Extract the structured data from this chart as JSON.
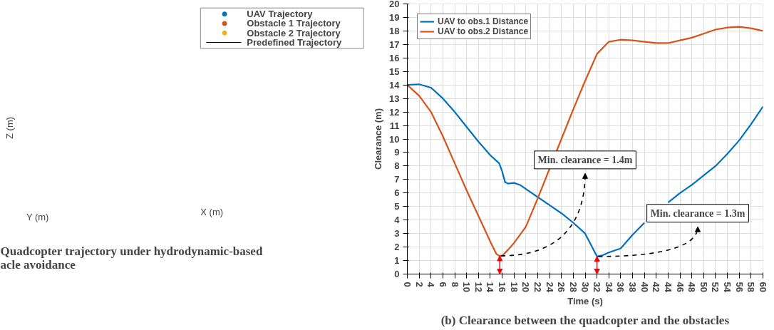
{
  "chart_data": [
    {
      "type": "other",
      "title": "Quadcopter trajectory under hydrodynamic-based\nacle avoidance",
      "xlabel": "X (m)",
      "ylabel": "Y (m)",
      "annotations": [
        "Z (m)"
      ],
      "legend": "top right",
      "series": [
        {
          "name": "UAV Trajectory",
          "color": "#0072bd",
          "marker": "circle"
        },
        {
          "name": "Obstacle 1 Trajectory",
          "color": "#d95319",
          "marker": "circle"
        },
        {
          "name": "Obstacle 2 Trajectory",
          "color": "#edb120",
          "marker": "circle"
        },
        {
          "name": "Predefined Trajectory",
          "color": "#000000",
          "marker": "none"
        }
      ]
    },
    {
      "type": "line",
      "title": "(b) Clearance between the quadcopter and the obstacles",
      "xlabel": "Time (s)",
      "ylabel": "Clearance (m)",
      "xlim": [
        0,
        60
      ],
      "xticks": [
        0,
        2,
        4,
        6,
        8,
        10,
        12,
        14,
        16,
        18,
        20,
        22,
        24,
        26,
        28,
        30,
        32,
        34,
        36,
        38,
        40,
        42,
        44,
        46,
        48,
        50,
        52,
        54,
        56,
        58,
        60
      ],
      "ylim": [
        0,
        20
      ],
      "yticks": [
        0,
        1,
        2,
        3,
        4,
        5,
        6,
        7,
        8,
        9,
        10,
        11,
        12,
        13,
        14,
        15,
        16,
        17,
        18,
        19,
        20
      ],
      "grid": true,
      "legend": "top left",
      "line_style": "solid",
      "marker": "none",
      "series": [
        {
          "name": "UAV to obs.1 Distance",
          "color": "#0072bd",
          "x": [
            0,
            2,
            4,
            6,
            8,
            10,
            12,
            14,
            15,
            15.5,
            16,
            16.5,
            17,
            18,
            19,
            20,
            22,
            24,
            26,
            28,
            30,
            32,
            33,
            34,
            36,
            38,
            40,
            42,
            44,
            46,
            48,
            50,
            52,
            54,
            56,
            58,
            60
          ],
          "values": [
            14,
            14.05,
            13.8,
            13,
            12,
            10.9,
            9.8,
            8.8,
            8.4,
            8.2,
            7.6,
            6.8,
            6.7,
            6.75,
            6.6,
            6.3,
            5.7,
            5.1,
            4.5,
            3.8,
            3,
            1.3,
            1.4,
            1.6,
            1.9,
            2.9,
            3.8,
            null,
            5.3,
            6,
            6.6,
            7.3,
            8,
            8.9,
            9.9,
            11.1,
            12.4
          ]
        },
        {
          "name": "UAV to obs.2 Distance",
          "color": "#d95319",
          "x": [
            0,
            2,
            4,
            6,
            8,
            10,
            12,
            14,
            15,
            15.5,
            16,
            17,
            18,
            20,
            22,
            24,
            26,
            28,
            30,
            32,
            34,
            36,
            38,
            40,
            42,
            44,
            46,
            48,
            50,
            52,
            54,
            56,
            58,
            60
          ],
          "values": [
            14,
            13.2,
            12,
            10.2,
            8.2,
            6.2,
            4.3,
            2.4,
            1.5,
            1.35,
            1.35,
            1.8,
            2.3,
            3.5,
            5.6,
            7.8,
            10,
            12.2,
            14.3,
            16.3,
            17.2,
            17.35,
            17.3,
            17.2,
            17.1,
            17.1,
            17.3,
            17.5,
            17.8,
            18.1,
            18.25,
            18.3,
            18.2,
            18
          ]
        }
      ],
      "annotations": [
        {
          "text": "Min. clearance = 1.4m",
          "x": 15.6,
          "y": 1.35
        },
        {
          "text": "Min. clearance = 1.3m",
          "x": 32,
          "y": 1.3
        }
      ]
    }
  ]
}
